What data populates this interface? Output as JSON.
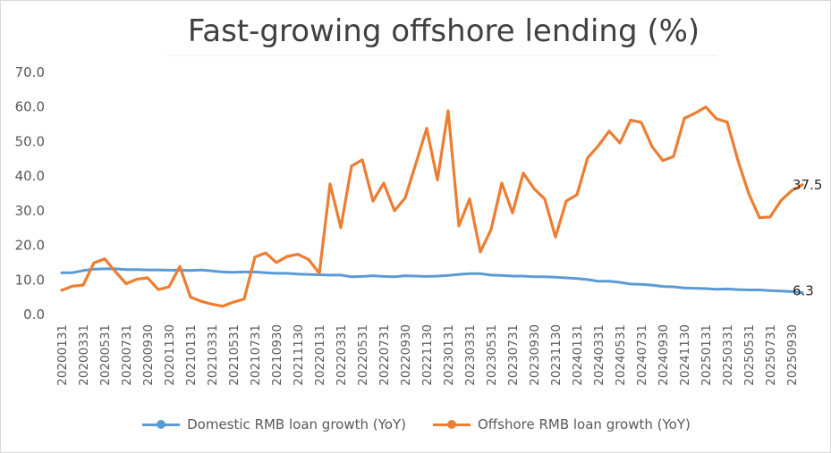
{
  "chart_data": {
    "type": "line",
    "title": "Fast-growing offshore lending (%)",
    "ylim": [
      0,
      70
    ],
    "yticks": [
      "0.0",
      "10.0",
      "20.0",
      "30.0",
      "40.0",
      "50.0",
      "60.0",
      "70.0"
    ],
    "grid": false,
    "legend_position": "bottom",
    "x": [
      "20200131",
      "20200229",
      "20200331",
      "20200430",
      "20200531",
      "20200630",
      "20200731",
      "20200831",
      "20200930",
      "20201031",
      "20201130",
      "20201231",
      "20210131",
      "20210228",
      "20210331",
      "20210430",
      "20210531",
      "20210630",
      "20210731",
      "20210831",
      "20210930",
      "20211031",
      "20211130",
      "20211231",
      "20220131",
      "20220228",
      "20220331",
      "20220430",
      "20220531",
      "20220630",
      "20220731",
      "20220831",
      "20220930",
      "20221031",
      "20221130",
      "20221231",
      "20230131",
      "20230228",
      "20230331",
      "20230430",
      "20230531",
      "20230630",
      "20230731",
      "20230831",
      "20230930",
      "20231031",
      "20231130",
      "20231231",
      "20240131",
      "20240229",
      "20240331",
      "20240430",
      "20240531",
      "20240630",
      "20240731",
      "20240831",
      "20240930",
      "20241031",
      "20241130",
      "20241231",
      "20250131",
      "20250228",
      "20250331",
      "20250430",
      "20250531",
      "20250630",
      "20250731",
      "20250831",
      "20250930",
      "20251031"
    ],
    "xtick_labels": [
      "20200131",
      "20200331",
      "20200531",
      "20200731",
      "20200930",
      "20201130",
      "20210131",
      "20210331",
      "20210531",
      "20210731",
      "20210930",
      "20211130",
      "20220131",
      "20220331",
      "20220531",
      "20220731",
      "20220930",
      "20221130",
      "20230131",
      "20230331",
      "20230531",
      "20230731",
      "20230930",
      "20231130",
      "20240131",
      "20240331",
      "20240531",
      "20240731",
      "20240930",
      "20241130",
      "20250131",
      "20250331",
      "20250531",
      "20250731",
      "20250930"
    ],
    "series": [
      {
        "name": "Domestic RMB loan growth (YoY)",
        "color": "#5b9bd5",
        "values": [
          12.1,
          12.1,
          12.7,
          13.1,
          13.2,
          13.2,
          13.0,
          13.0,
          12.9,
          12.9,
          12.8,
          12.8,
          12.7,
          12.9,
          12.6,
          12.3,
          12.2,
          12.3,
          12.3,
          12.1,
          11.9,
          11.9,
          11.7,
          11.6,
          11.5,
          11.4,
          11.4,
          10.9,
          11.0,
          11.2,
          11.0,
          10.9,
          11.2,
          11.1,
          11.0,
          11.1,
          11.3,
          11.6,
          11.8,
          11.8,
          11.4,
          11.3,
          11.1,
          11.1,
          10.9,
          10.9,
          10.8,
          10.6,
          10.4,
          10.1,
          9.6,
          9.6,
          9.3,
          8.8,
          8.7,
          8.5,
          8.1,
          8.0,
          7.7,
          7.6,
          7.5,
          7.3,
          7.4,
          7.2,
          7.1,
          7.1,
          6.9,
          6.8,
          6.6,
          6.3
        ],
        "end_label": "6.3"
      },
      {
        "name": "Offshore RMB loan growth (YoY)",
        "color": "#ed7d31",
        "values": [
          7.0,
          8.2,
          8.5,
          14.9,
          16.1,
          12.4,
          8.9,
          10.2,
          10.6,
          7.2,
          8.0,
          13.9,
          5.0,
          3.8,
          3.0,
          2.4,
          3.6,
          4.5,
          16.6,
          17.8,
          15.0,
          16.8,
          17.4,
          15.9,
          11.9,
          37.7,
          25.1,
          42.9,
          44.7,
          32.8,
          38.0,
          30.0,
          33.7,
          43.7,
          53.8,
          38.9,
          58.9,
          25.6,
          33.4,
          18.1,
          24.6,
          38.0,
          29.4,
          40.9,
          36.4,
          33.4,
          22.4,
          32.8,
          34.6,
          45.3,
          48.8,
          53.0,
          49.6,
          56.2,
          55.5,
          48.5,
          44.5,
          45.7,
          56.7,
          58.2,
          60.0,
          56.6,
          55.6,
          44.5,
          35.0,
          28.0,
          28.2,
          32.9,
          35.8,
          37.5
        ],
        "end_label": "37.5"
      }
    ]
  }
}
